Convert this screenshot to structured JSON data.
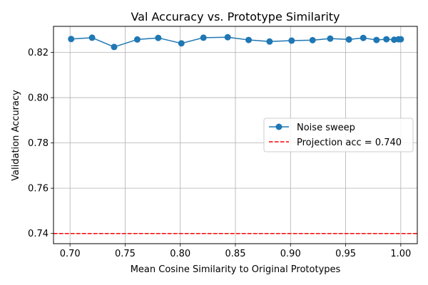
{
  "chart_data": {
    "type": "line",
    "title": "Val Accuracy vs. Prototype Similarity",
    "xlabel": "Mean Cosine Similarity to Original Prototypes",
    "ylabel": "Validation Accuracy",
    "xlim": [
      0.685,
      1.015
    ],
    "ylim": [
      0.7355,
      0.8315
    ],
    "x_ticks": [
      0.7,
      0.75,
      0.8,
      0.85,
      0.9,
      0.95,
      1.0
    ],
    "x_tick_labels": [
      "0.70",
      "0.75",
      "0.80",
      "0.85",
      "0.90",
      "0.95",
      "1.00"
    ],
    "y_ticks": [
      0.74,
      0.76,
      0.78,
      0.8,
      0.82
    ],
    "y_tick_labels": [
      "0.74",
      "0.76",
      "0.78",
      "0.80",
      "0.82"
    ],
    "grid": true,
    "legend_position": "right",
    "series": [
      {
        "name": "Noise sweep",
        "style": "line-markers",
        "color": "#1f77b4",
        "x": [
          0.701,
          0.72,
          0.74,
          0.761,
          0.78,
          0.801,
          0.821,
          0.843,
          0.862,
          0.881,
          0.901,
          0.92,
          0.936,
          0.953,
          0.966,
          0.978,
          0.987,
          0.994,
          0.998,
          1.0
        ],
        "y": [
          0.8259,
          0.8265,
          0.8224,
          0.8257,
          0.8264,
          0.824,
          0.8265,
          0.8267,
          0.8255,
          0.8248,
          0.8252,
          0.8254,
          0.8261,
          0.8257,
          0.8264,
          0.8255,
          0.8258,
          0.8256,
          0.8258,
          0.8258
        ]
      }
    ],
    "reference_lines": [
      {
        "name": "Projection acc = 0.740",
        "orientation": "horizontal",
        "value": 0.74,
        "style": "dashed",
        "color": "#ff0000"
      }
    ]
  }
}
